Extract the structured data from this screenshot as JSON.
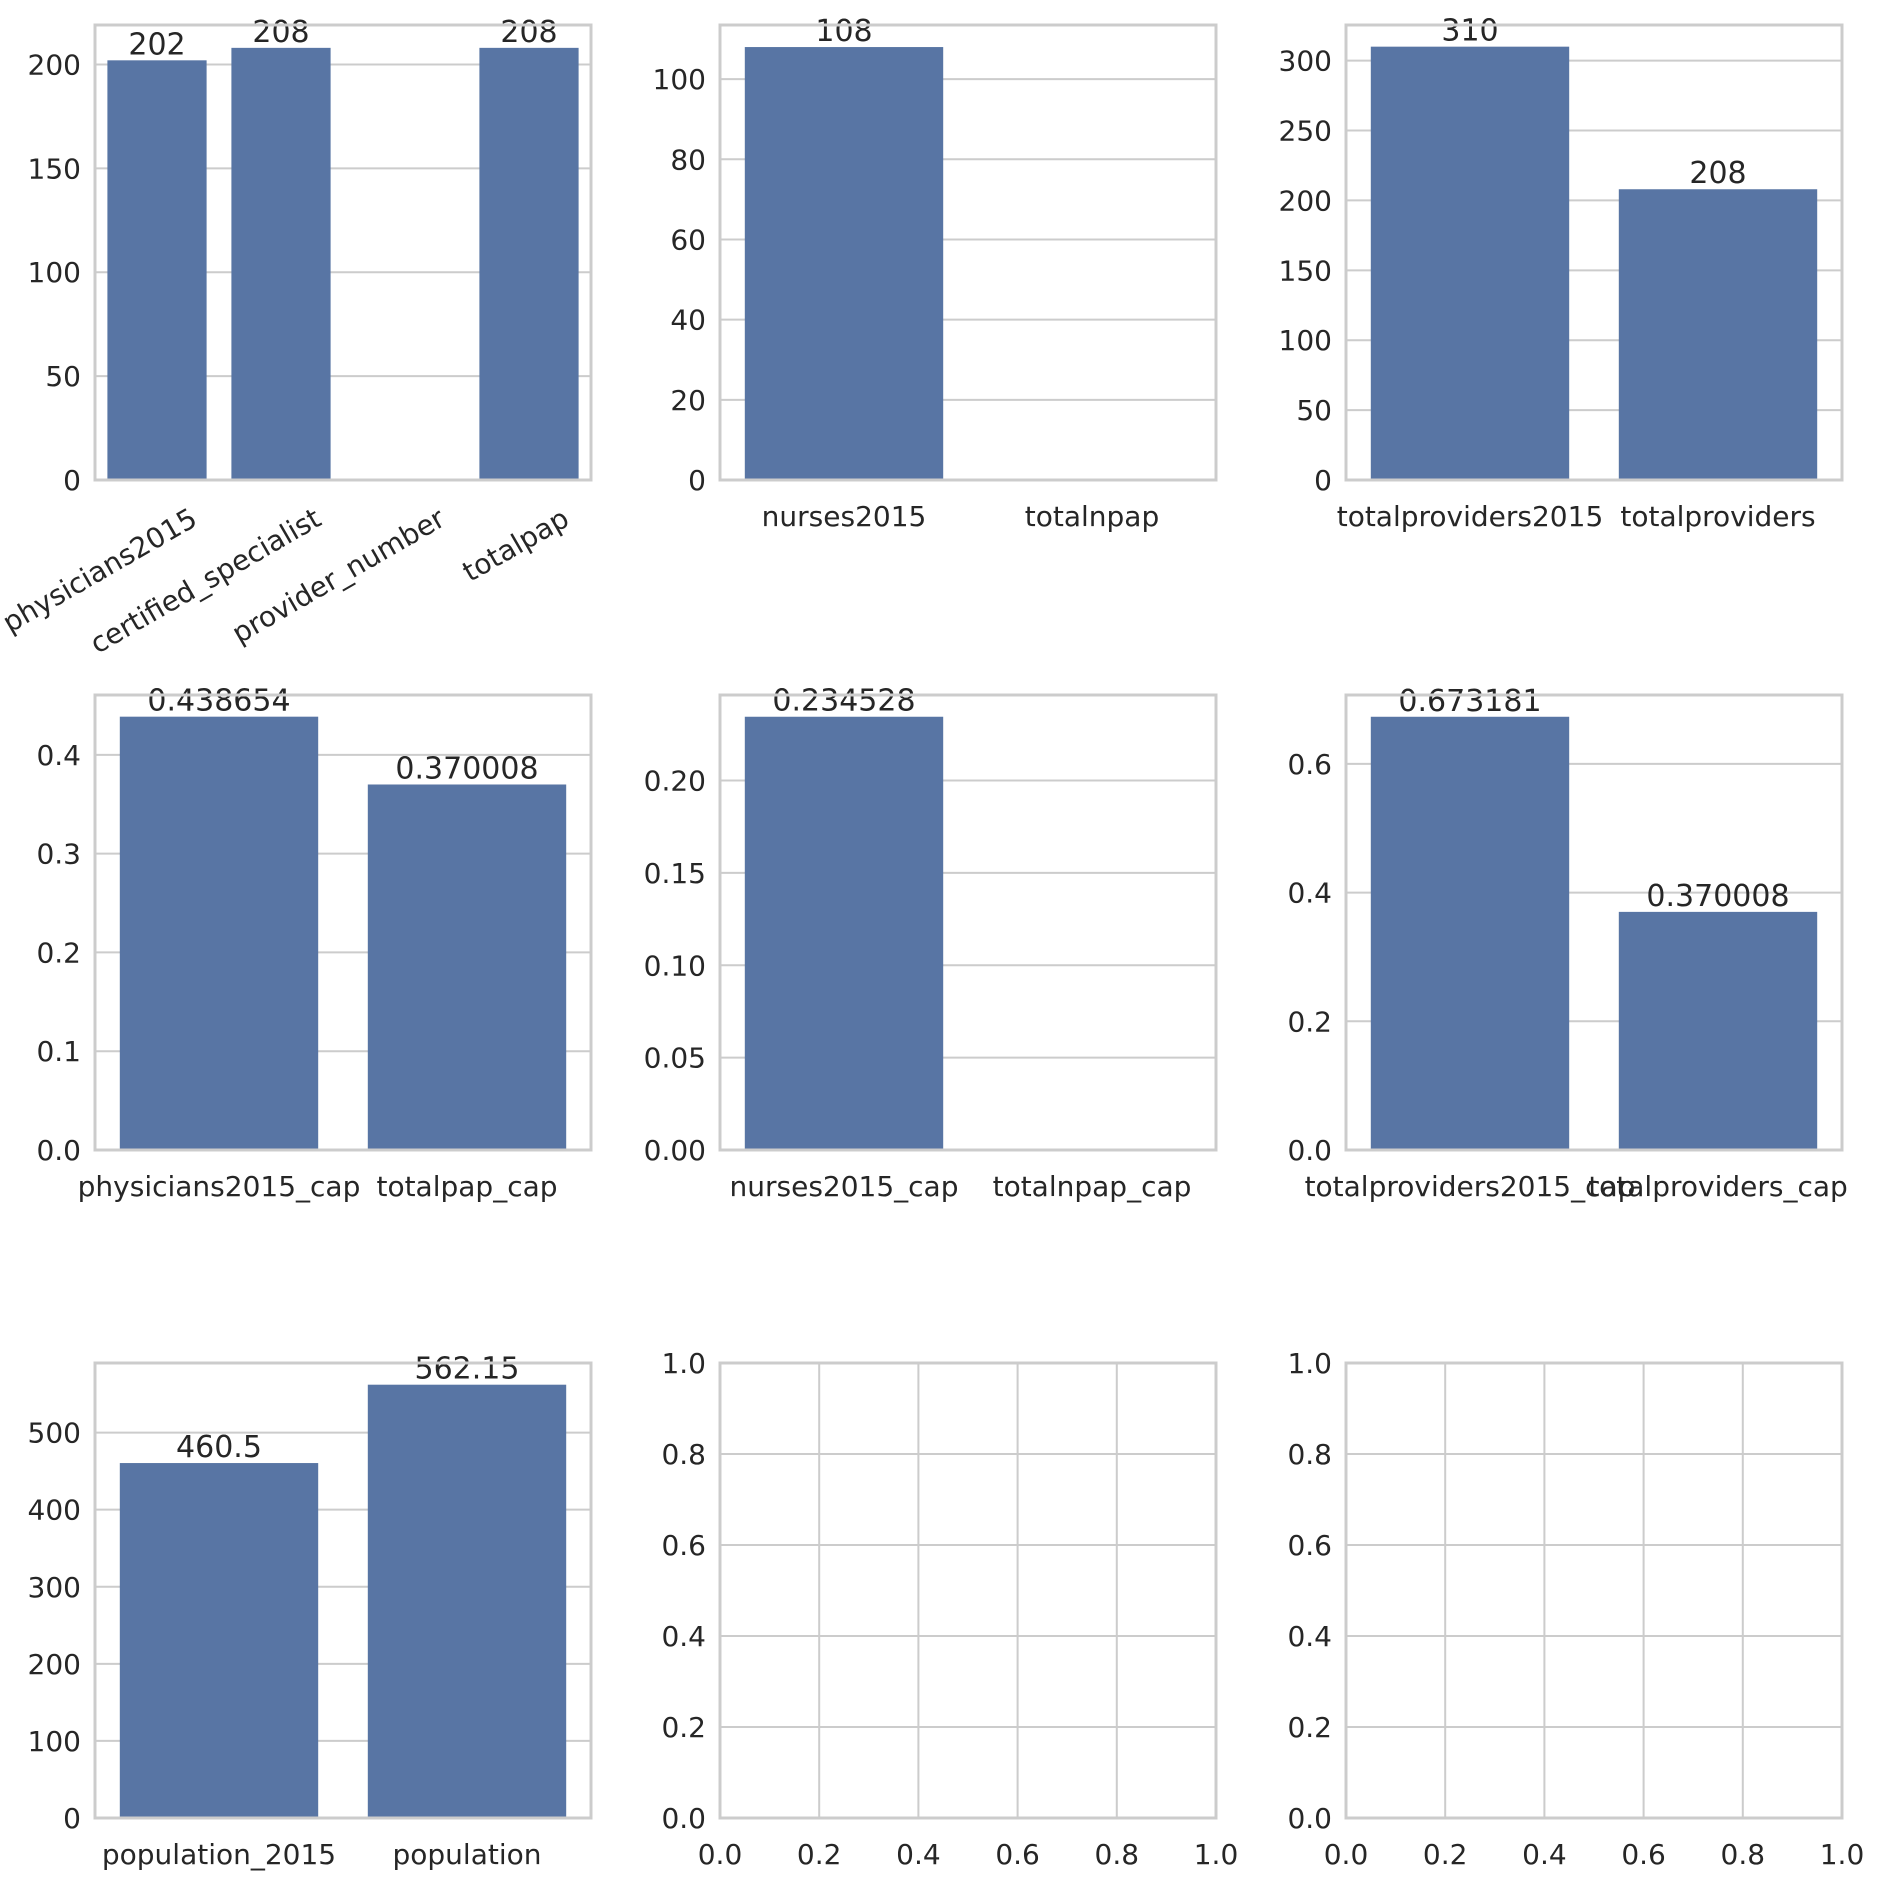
{
  "colors": {
    "bar": "#5875a4",
    "grid": "#cccccc",
    "spine": "#cccccc",
    "text": "#262626",
    "background": "#ffffff"
  },
  "chart_data": [
    {
      "type": "bar",
      "categories": [
        "physicians2015",
        "certified_specialist",
        "provider_number",
        "totalpap"
      ],
      "values": [
        202,
        208,
        null,
        208
      ],
      "data_labels": [
        "202",
        "208",
        "",
        "208"
      ],
      "ylim": [
        0,
        219
      ],
      "yticks": [
        0,
        50,
        100,
        150,
        200
      ],
      "ytick_labels": [
        "0",
        "50",
        "100",
        "150",
        "200"
      ],
      "xtick_rotation": -30,
      "grid": "y"
    },
    {
      "type": "bar",
      "categories": [
        "nurses2015",
        "totalnpap"
      ],
      "values": [
        108,
        null
      ],
      "data_labels": [
        "108",
        ""
      ],
      "ylim": [
        0,
        113.5
      ],
      "yticks": [
        0,
        20,
        40,
        60,
        80,
        100
      ],
      "ytick_labels": [
        "0",
        "20",
        "40",
        "60",
        "80",
        "100"
      ],
      "xtick_rotation": 0,
      "grid": "y"
    },
    {
      "type": "bar",
      "categories": [
        "totalproviders2015",
        "totalproviders"
      ],
      "values": [
        310,
        208
      ],
      "data_labels": [
        "310",
        "208"
      ],
      "ylim": [
        0,
        325.5
      ],
      "yticks": [
        0,
        50,
        100,
        150,
        200,
        250,
        300
      ],
      "ytick_labels": [
        "0",
        "50",
        "100",
        "150",
        "200",
        "250",
        "300"
      ],
      "xtick_rotation": 0,
      "grid": "y"
    },
    {
      "type": "bar",
      "categories": [
        "physicians2015_cap",
        "totalpap_cap"
      ],
      "values": [
        0.438654,
        0.370008
      ],
      "data_labels": [
        "0.438654",
        "0.370008"
      ],
      "ylim": [
        0,
        0.4606
      ],
      "yticks": [
        0,
        0.1,
        0.2,
        0.3,
        0.4
      ],
      "ytick_labels": [
        "0.0",
        "0.1",
        "0.2",
        "0.3",
        "0.4"
      ],
      "xtick_rotation": 0,
      "grid": "y"
    },
    {
      "type": "bar",
      "categories": [
        "nurses2015_cap",
        "totalnpap_cap"
      ],
      "values": [
        0.234528,
        null
      ],
      "data_labels": [
        "0.234528",
        ""
      ],
      "ylim": [
        0,
        0.2463
      ],
      "yticks": [
        0,
        0.05,
        0.1,
        0.15,
        0.2
      ],
      "ytick_labels": [
        "0.00",
        "0.05",
        "0.10",
        "0.15",
        "0.20"
      ],
      "xtick_rotation": 0,
      "grid": "y"
    },
    {
      "type": "bar",
      "categories": [
        "totalproviders2015_cap",
        "totalproviders_cap"
      ],
      "values": [
        0.673181,
        0.370008
      ],
      "data_labels": [
        "0.673181",
        "0.370008"
      ],
      "ylim": [
        0,
        0.707
      ],
      "yticks": [
        0,
        0.2,
        0.4,
        0.6
      ],
      "ytick_labels": [
        "0.0",
        "0.2",
        "0.4",
        "0.6"
      ],
      "xtick_rotation": 0,
      "grid": "y"
    },
    {
      "type": "bar",
      "categories": [
        "population_2015",
        "population"
      ],
      "values": [
        460.5,
        562.15
      ],
      "data_labels": [
        "460.5",
        "562.15"
      ],
      "ylim": [
        0,
        590.3
      ],
      "yticks": [
        0,
        100,
        200,
        300,
        400,
        500
      ],
      "ytick_labels": [
        "0",
        "100",
        "200",
        "300",
        "400",
        "500"
      ],
      "xtick_rotation": 0,
      "grid": "y"
    },
    {
      "type": "empty",
      "xlim": [
        0,
        1
      ],
      "ylim": [
        0,
        1
      ],
      "xticks": [
        0,
        0.2,
        0.4,
        0.6,
        0.8,
        1.0
      ],
      "xtick_labels": [
        "0.0",
        "0.2",
        "0.4",
        "0.6",
        "0.8",
        "1.0"
      ],
      "yticks": [
        0,
        0.2,
        0.4,
        0.6,
        0.8,
        1.0
      ],
      "ytick_labels": [
        "0.0",
        "0.2",
        "0.4",
        "0.6",
        "0.8",
        "1.0"
      ],
      "grid": "both"
    },
    {
      "type": "empty",
      "xlim": [
        0,
        1
      ],
      "ylim": [
        0,
        1
      ],
      "xticks": [
        0,
        0.2,
        0.4,
        0.6,
        0.8,
        1.0
      ],
      "xtick_labels": [
        "0.0",
        "0.2",
        "0.4",
        "0.6",
        "0.8",
        "1.0"
      ],
      "yticks": [
        0,
        0.2,
        0.4,
        0.6,
        0.8,
        1.0
      ],
      "ytick_labels": [
        "0.0",
        "0.2",
        "0.4",
        "0.6",
        "0.8",
        "1.0"
      ],
      "grid": "both"
    }
  ]
}
